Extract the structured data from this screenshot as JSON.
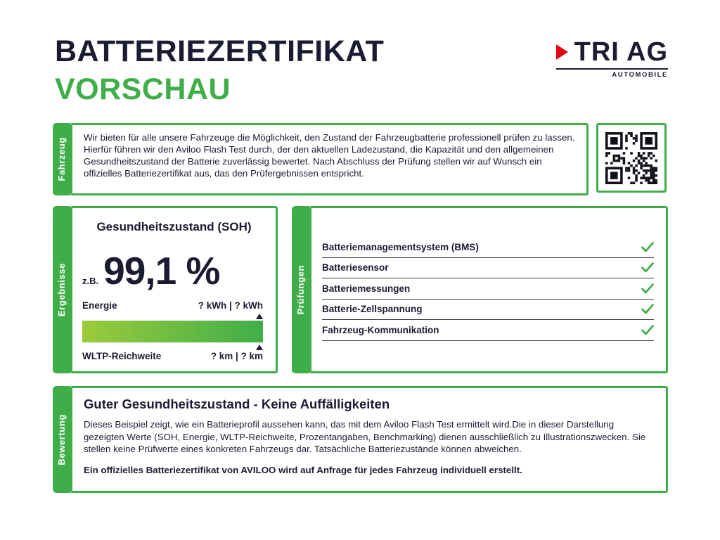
{
  "colors": {
    "green": "#3fae49",
    "dark": "#1b1b32",
    "red": "#e30613",
    "bar_from": "#9bcb3c",
    "bar_to": "#3fae49"
  },
  "header": {
    "title_line1": "BATTERIEZERTIFIKAT",
    "title_line2": "VORSCHAU"
  },
  "logo": {
    "name": "TRI AG",
    "subtitle": "AUTOMOBILE"
  },
  "icons": {
    "check": "✓",
    "marker": "▲",
    "qr": "qr-code"
  },
  "fahrzeug": {
    "tab": "Fahrzeug",
    "text": "Wir bieten für alle unsere Fahrzeuge die Möglichkeit, den Zustand der Fahrzeugbatterie professionell prüfen zu lassen. Hierfür führen wir den Aviloo Flash Test durch, der den aktuellen Ladezustand, die Kapazität und den allgemeinen Gesundheitszustand der Batterie zuverlässig bewertet. Nach Abschluss der Prüfung stellen wir auf Wunsch ein offizielles Batteriezertifikat aus, das den Prüfergebnissen entspricht."
  },
  "ergebnisse": {
    "tab": "Ergebnisse",
    "heading": "Gesundheitszustand (SOH)",
    "soh_prefix": "z.B.",
    "soh_value": "99,1 %",
    "energie_label": "Energie",
    "energie_value": "? kWh | ? kWh",
    "wltp_label": "WLTP-Reichweite",
    "wltp_value": "? km | ? km"
  },
  "pruefungen": {
    "tab": "Prüfungen",
    "items": [
      "Batteriemanagementsystem (BMS)",
      "Batteriesensor",
      "Batteriemessungen",
      "Batterie-Zellspannung",
      "Fahrzeug-Kommunikation"
    ]
  },
  "bewertung": {
    "tab": "Bewertung",
    "heading": "Guter Gesundheitszustand - Keine Auffälligkeiten",
    "text": "Dieses Beispiel zeigt, wie ein Batterieprofil aussehen kann, das mit dem Aviloo Flash Test ermittelt wird.Die in dieser Darstellung gezeigten Werte (SOH, Energie, WLTP-Reichweite, Prozentangaben, Benchmarking) dienen ausschließlich zu Illustrationszwecken. Sie stellen keine Prüfwerte eines konkreten Fahrzeugs dar. Tatsächliche Batteriezustände können abweichen.",
    "footer": "Ein offizielles Batteriezertifikat von AVILOO wird auf Anfrage für jedes Fahrzeug individuell erstellt."
  }
}
